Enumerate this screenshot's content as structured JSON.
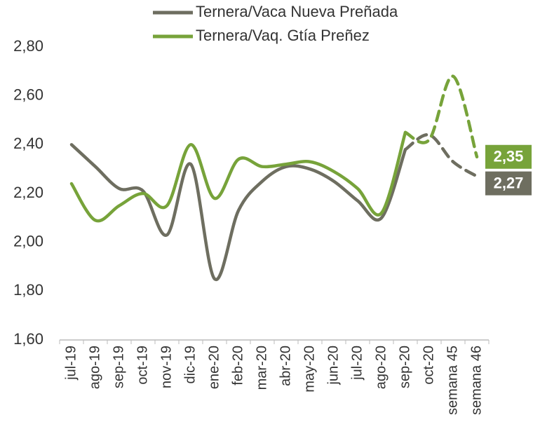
{
  "chart_data": {
    "type": "line",
    "categories": [
      "jul-19",
      "ago-19",
      "sep-19",
      "oct-19",
      "nov-19",
      "dic-19",
      "ene-20",
      "feb-20",
      "mar-20",
      "abr-20",
      "may-20",
      "jun-20",
      "jul-20",
      "ago-20",
      "sep-20",
      "oct-20",
      "semana 45",
      "semana 46"
    ],
    "series": [
      {
        "name": "Ternera/Vaca Nueva Preñada",
        "color": "#6e6e60",
        "values": [
          2.4,
          2.31,
          2.22,
          2.21,
          2.03,
          2.32,
          1.85,
          2.13,
          2.25,
          2.31,
          2.3,
          2.25,
          2.17,
          2.1,
          2.38,
          2.44,
          2.33,
          2.27
        ],
        "value_labels": [
          null,
          null,
          null,
          null,
          null,
          null,
          null,
          null,
          null,
          null,
          null,
          null,
          null,
          null,
          null,
          null,
          null,
          "2,27"
        ]
      },
      {
        "name": "Ternera/Vaq. Gtía Preñez",
        "color": "#77a33a",
        "values": [
          2.24,
          2.09,
          2.15,
          2.2,
          2.15,
          2.4,
          2.18,
          2.34,
          2.31,
          2.32,
          2.33,
          2.29,
          2.22,
          2.12,
          2.45,
          2.42,
          2.68,
          2.35
        ],
        "value_labels": [
          null,
          null,
          null,
          null,
          null,
          null,
          null,
          null,
          null,
          null,
          null,
          null,
          null,
          null,
          null,
          null,
          null,
          "2,35"
        ]
      }
    ],
    "ylim": [
      1.6,
      2.8
    ],
    "yticks": [
      {
        "value": 1.6,
        "label": "1,60"
      },
      {
        "value": 1.8,
        "label": "1,80"
      },
      {
        "value": 2.0,
        "label": "2,00"
      },
      {
        "value": 2.2,
        "label": "2,20"
      },
      {
        "value": 2.4,
        "label": "2,40"
      },
      {
        "value": 2.6,
        "label": "2,60"
      },
      {
        "value": 2.8,
        "label": "2,80"
      }
    ],
    "grid": false,
    "legend": "top"
  }
}
